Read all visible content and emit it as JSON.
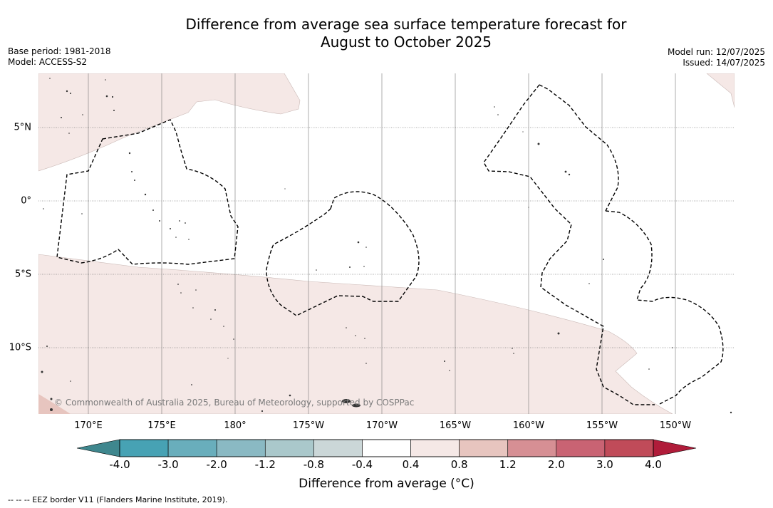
{
  "title_line1": "Difference from average sea surface temperature forecast for",
  "title_line2": "August to October 2025",
  "base_period": "Base period: 1981-2018",
  "model": "Model: ACCESS-S2",
  "model_run": "Model run: 12/07/2025",
  "issued": "Issued: 14/07/2025",
  "copyright": "© Commonwealth of Australia 2025, Bureau of Meteorology, supported by COSPPac",
  "lon_labels": [
    "170°E",
    "175°E",
    "180°",
    "175°W",
    "170°W",
    "165°W",
    "160°W",
    "155°W",
    "150°W"
  ],
  "lat_labels": [
    "5°N",
    "0°",
    "5°S",
    "10°S"
  ],
  "colorbar": {
    "title": "Difference from average (°C)",
    "ticks": [
      "-4.0",
      "-3.0",
      "-2.0",
      "-1.2",
      "-0.8",
      "-0.4",
      "0.4",
      "0.8",
      "1.2",
      "2.0",
      "3.0",
      "4.0"
    ],
    "colors": [
      "#47a2b4",
      "#69aebc",
      "#8ab9c3",
      "#aac8cb",
      "#cbd7d8",
      "#ffffff",
      "#f5e8e6",
      "#e7c5bf",
      "#d68f94",
      "#c96373",
      "#c04b59"
    ],
    "under_color": "#3f878e",
    "over_color": "#b01c3a"
  },
  "footnote": "-- -- -- EEZ border V11 (Flanders Marine Institute, 2019).",
  "colors": {
    "positive_anomaly_fill": "#f5e8e6",
    "stronger_anomaly_fill": "#e7c5bf",
    "gridline": "#777777"
  }
}
